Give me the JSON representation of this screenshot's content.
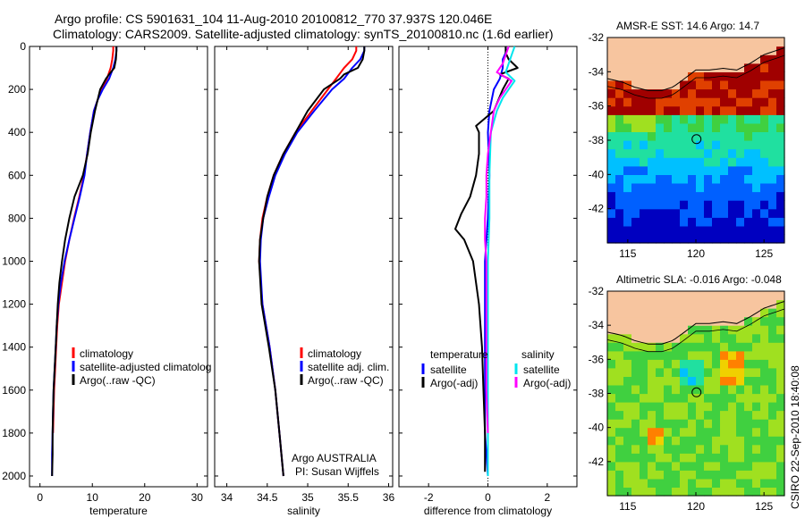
{
  "figure": {
    "title_line1": "Argo profile: CS 5901631_104 11-Aug-2010 20100812_770 37.937S 120.046E",
    "title_line2": "Climatology: CARS2009. Satellite-adjusted climatology: synTS_20100810.nc (1.6d earlier)",
    "credit": "CSIRO 22-Sep-2010 18:40:08",
    "argo_note": "Argo AUSTRALIA",
    "pi_note": "PI: Susan Wijffels"
  },
  "colors": {
    "climatology": "#ff0000",
    "satellite": "#0000ff",
    "argo": "#000000",
    "salinity_satellite": "#00e5ee",
    "salinity_argo": "#ff00ff",
    "land": "#f7c59f",
    "marker": "#000000"
  },
  "chart_data": [
    {
      "id": "temperature",
      "type": "line",
      "xlabel": "temperature",
      "ylabel": "",
      "xlim": [
        -2,
        32
      ],
      "ylim": [
        2050,
        0
      ],
      "xticks": [
        0,
        10,
        20,
        30
      ],
      "yticks": [
        0,
        200,
        400,
        600,
        800,
        1000,
        1200,
        1400,
        1600,
        1800,
        2000
      ],
      "legend": [
        "climatology",
        "satellite-adjusted climatolog",
        "Argo(..raw -QC)"
      ],
      "legend_position": "lower-right",
      "series": [
        {
          "name": "climatology",
          "color": "#ff0000",
          "depth": [
            0,
            20,
            60,
            100,
            150,
            200,
            250,
            300,
            400,
            500,
            600,
            700,
            800,
            900,
            1000,
            1100,
            1200,
            1300,
            1400,
            1500,
            1600,
            1700,
            1800
          ],
          "values": [
            14.0,
            14.0,
            13.8,
            13.5,
            12.8,
            11.8,
            11.0,
            10.3,
            9.6,
            9.0,
            8.4,
            7.5,
            6.5,
            5.6,
            4.8,
            4.2,
            3.6,
            3.3,
            3.1,
            2.9,
            2.7,
            2.6,
            2.5
          ]
        },
        {
          "name": "satellite-adjusted climatology",
          "color": "#0000ff",
          "depth": [
            0,
            20,
            60,
            100,
            150,
            200,
            250,
            300,
            400,
            500,
            600,
            700,
            800,
            900,
            1000,
            1100,
            1200,
            1300,
            1400,
            1500,
            1600,
            1700,
            1800,
            1900,
            2000
          ],
          "values": [
            14.6,
            14.6,
            14.4,
            14.0,
            13.2,
            12.0,
            11.0,
            10.3,
            9.6,
            9.0,
            8.5,
            7.6,
            6.6,
            5.6,
            4.7,
            4.0,
            3.5,
            3.2,
            3.0,
            2.8,
            2.6,
            2.5,
            2.4,
            2.3,
            2.3
          ]
        },
        {
          "name": "Argo(..raw -QC)",
          "color": "#000000",
          "depth": [
            0,
            20,
            60,
            100,
            130,
            150,
            200,
            300,
            400,
            500,
            600,
            700,
            800,
            900,
            1000,
            1100,
            1200,
            1300,
            1400,
            1500,
            1600,
            1700,
            1800,
            1900,
            2000
          ],
          "values": [
            14.6,
            14.6,
            14.5,
            14.2,
            13.2,
            12.6,
            11.5,
            10.5,
            9.7,
            9.1,
            8.2,
            6.6,
            5.6,
            4.8,
            4.2,
            3.7,
            3.4,
            3.2,
            3.0,
            2.8,
            2.6,
            2.5,
            2.4,
            2.4,
            2.3
          ]
        }
      ]
    },
    {
      "id": "salinity",
      "type": "line",
      "xlabel": "salinity",
      "ylabel": "",
      "xlim": [
        33.85,
        36.05
      ],
      "ylim": [
        2050,
        0
      ],
      "xticks": [
        34,
        34.5,
        35,
        35.5,
        36
      ],
      "yticks": [
        0,
        200,
        400,
        600,
        800,
        1000,
        1200,
        1400,
        1600,
        1800,
        2000
      ],
      "legend": [
        "climatology",
        "satellite adj. clim.",
        "Argo(..raw -QC)"
      ],
      "legend_position": "lower-right",
      "series": [
        {
          "name": "climatology",
          "color": "#ff0000",
          "depth": [
            0,
            20,
            60,
            100,
            150,
            200,
            300,
            400,
            500,
            600,
            700,
            800,
            900,
            1000,
            1200,
            1400,
            1600,
            1800,
            2000
          ],
          "values": [
            35.6,
            35.6,
            35.55,
            35.45,
            35.35,
            35.25,
            35.05,
            34.85,
            34.7,
            34.58,
            34.5,
            34.44,
            34.41,
            34.4,
            34.44,
            34.53,
            34.6,
            34.65,
            34.7
          ]
        },
        {
          "name": "satellite adj. clim.",
          "color": "#0000ff",
          "depth": [
            0,
            20,
            60,
            100,
            150,
            200,
            300,
            400,
            500,
            600,
            700,
            800,
            900,
            1000,
            1200,
            1400,
            1600,
            1800,
            2000
          ],
          "values": [
            35.7,
            35.7,
            35.65,
            35.55,
            35.45,
            35.3,
            35.08,
            34.87,
            34.72,
            34.6,
            34.52,
            34.45,
            34.42,
            34.41,
            34.44,
            34.53,
            34.6,
            34.65,
            34.7
          ]
        },
        {
          "name": "Argo(..raw -QC)",
          "color": "#000000",
          "depth": [
            0,
            20,
            60,
            100,
            130,
            150,
            200,
            300,
            400,
            500,
            600,
            700,
            800,
            900,
            1000,
            1200,
            1400,
            1600,
            1800,
            2000
          ],
          "values": [
            35.7,
            35.7,
            35.68,
            35.62,
            35.45,
            35.4,
            35.2,
            35.0,
            34.85,
            34.7,
            34.58,
            34.5,
            34.45,
            34.41,
            34.4,
            34.43,
            34.52,
            34.6,
            34.65,
            34.7
          ]
        }
      ]
    },
    {
      "id": "difference",
      "type": "line",
      "xlabel": "difference from climatology",
      "ylabel": "",
      "xlim": [
        -3,
        3
      ],
      "ylim": [
        2050,
        0
      ],
      "xticks": [
        -2,
        0,
        2
      ],
      "yticks": [
        0,
        200,
        400,
        600,
        800,
        1000,
        1200,
        1400,
        1600,
        1800,
        2000
      ],
      "zero_line": "dotted",
      "legend_groups": [
        {
          "heading": "temperature",
          "items": [
            "satellite",
            "Argo(-adj)"
          ]
        },
        {
          "heading": "salinity",
          "items": [
            "satellite",
            "Argo(-adj)"
          ]
        }
      ],
      "legend_position": "lower",
      "series": [
        {
          "name": "satellite",
          "group": "temperature",
          "color": "#0000ff",
          "depth": [
            0,
            30,
            60,
            100,
            150,
            200,
            300,
            400,
            600,
            800,
            1000,
            1200,
            1400,
            1600,
            1800,
            2000
          ],
          "values": [
            0.6,
            0.6,
            0.5,
            0.5,
            0.4,
            0.2,
            0.05,
            0.0,
            0.05,
            0.0,
            -0.1,
            -0.1,
            -0.1,
            -0.1,
            -0.1,
            0.0
          ]
        },
        {
          "name": "Argo(-adj)",
          "group": "temperature",
          "color": "#000000",
          "depth": [
            0,
            30,
            60,
            100,
            130,
            150,
            200,
            300,
            370,
            400,
            500,
            600,
            700,
            780,
            850,
            900,
            1000,
            1100,
            1200,
            1400,
            1600,
            1800,
            1980
          ],
          "values": [
            0.6,
            0.6,
            0.7,
            1.0,
            0.4,
            0.7,
            0.5,
            0.2,
            -0.4,
            -0.3,
            -0.3,
            -0.4,
            -0.6,
            -0.9,
            -1.1,
            -0.8,
            -0.5,
            -0.4,
            -0.3,
            -0.2,
            -0.15,
            -0.1,
            -0.1
          ]
        },
        {
          "name": "satellite",
          "group": "salinity",
          "color": "#00e5ee",
          "depth": [
            0,
            40,
            80,
            120,
            160,
            200,
            240,
            300,
            400,
            600,
            800,
            1000,
            1200,
            1400,
            1600,
            1800,
            2000
          ],
          "values": [
            0.9,
            0.8,
            0.7,
            0.6,
            0.9,
            0.7,
            0.5,
            0.3,
            0.1,
            0.05,
            0.05,
            0.0,
            0.0,
            0.0,
            0.0,
            0.0,
            0.0
          ]
        },
        {
          "name": "Argo(-adj)",
          "group": "salinity",
          "color": "#ff00ff",
          "depth": [
            0,
            40,
            80,
            120,
            160,
            200,
            240,
            300,
            400,
            500,
            600,
            700,
            800,
            900,
            1000,
            1200,
            1400,
            1600,
            1800
          ],
          "values": [
            0.7,
            0.6,
            0.5,
            0.3,
            0.8,
            0.6,
            0.4,
            0.2,
            0.1,
            0.0,
            -0.05,
            -0.05,
            -0.1,
            -0.1,
            -0.05,
            -0.05,
            -0.05,
            -0.05,
            0.0
          ]
        }
      ]
    },
    {
      "id": "sst_map",
      "type": "heatmap",
      "title": "AMSR-E SST: 14.6 Argo: 14.7",
      "xlim": [
        113.5,
        126.5
      ],
      "ylim": [
        -44,
        -32
      ],
      "xticks": [
        115,
        120,
        125
      ],
      "yticks": [
        -32,
        -34,
        -36,
        -38,
        -40,
        -42
      ],
      "marker": {
        "lon": 120.046,
        "lat": -37.937
      },
      "colormap": [
        "#0000c0",
        "#0060ff",
        "#00c0ff",
        "#20e0a0",
        "#40d040",
        "#a0e020",
        "#f0d000",
        "#ff8000",
        "#e04000",
        "#a00000"
      ],
      "value_range": [
        10,
        22
      ],
      "land": "south-coast-australia"
    },
    {
      "id": "sla_map",
      "type": "heatmap",
      "title": "Altimetric SLA: -0.016 Argo: -0.048",
      "xlim": [
        113.5,
        126.5
      ],
      "ylim": [
        -44,
        -32
      ],
      "xticks": [
        115,
        120,
        125
      ],
      "yticks": [
        -32,
        -34,
        -36,
        -38,
        -40,
        -42
      ],
      "marker": {
        "lon": 120.046,
        "lat": -37.937
      },
      "colormap": [
        "#0000c0",
        "#0060ff",
        "#00c0ff",
        "#20e0a0",
        "#40d040",
        "#a0e020",
        "#f0d000",
        "#ff8000",
        "#e04000",
        "#a00000"
      ],
      "value_range": [
        -0.3,
        0.3
      ],
      "land": "south-coast-australia"
    }
  ]
}
